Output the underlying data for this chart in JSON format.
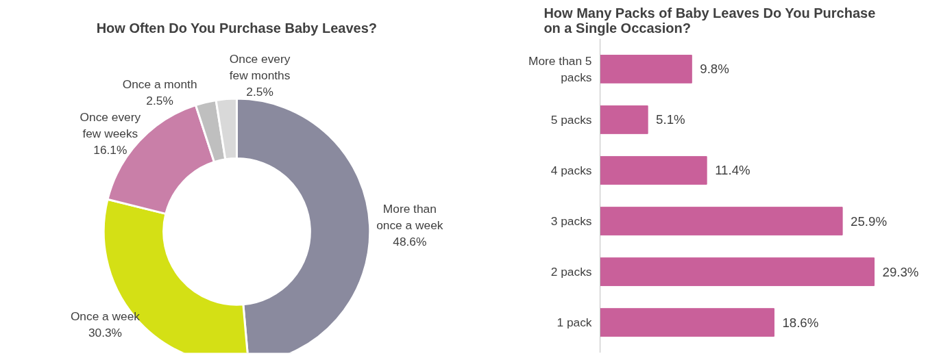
{
  "chart_data": [
    {
      "type": "donut",
      "title": "How Often Do You Purchase Baby Leaves?",
      "categories": [
        "More than once a week",
        "Once a week",
        "Once every few weeks",
        "Once a month",
        "Once every few months"
      ],
      "values": [
        48.6,
        30.3,
        16.1,
        2.5,
        2.5
      ],
      "value_labels": [
        "48.6%",
        "30.3%",
        "16.1%",
        "2.5%",
        "2.5%"
      ],
      "colors": [
        "#8a8a9e",
        "#d4e015",
        "#c97fa8",
        "#bfbfbf",
        "#d9d9d9"
      ]
    },
    {
      "type": "bar",
      "orientation": "horizontal",
      "title": "How Many Packs of Baby Leaves Do You Purchase on a Single Occasion?",
      "categories": [
        "More than 5 packs",
        "5 packs",
        "4 packs",
        "3 packs",
        "2 packs",
        "1 pack"
      ],
      "values": [
        9.8,
        5.1,
        11.4,
        25.9,
        29.3,
        18.6
      ],
      "value_labels": [
        "9.8%",
        "5.1%",
        "11.4%",
        "25.9%",
        "29.3%",
        "18.6%"
      ],
      "color": "#c9609a",
      "tick_labels": "y",
      "grid": false
    }
  ]
}
